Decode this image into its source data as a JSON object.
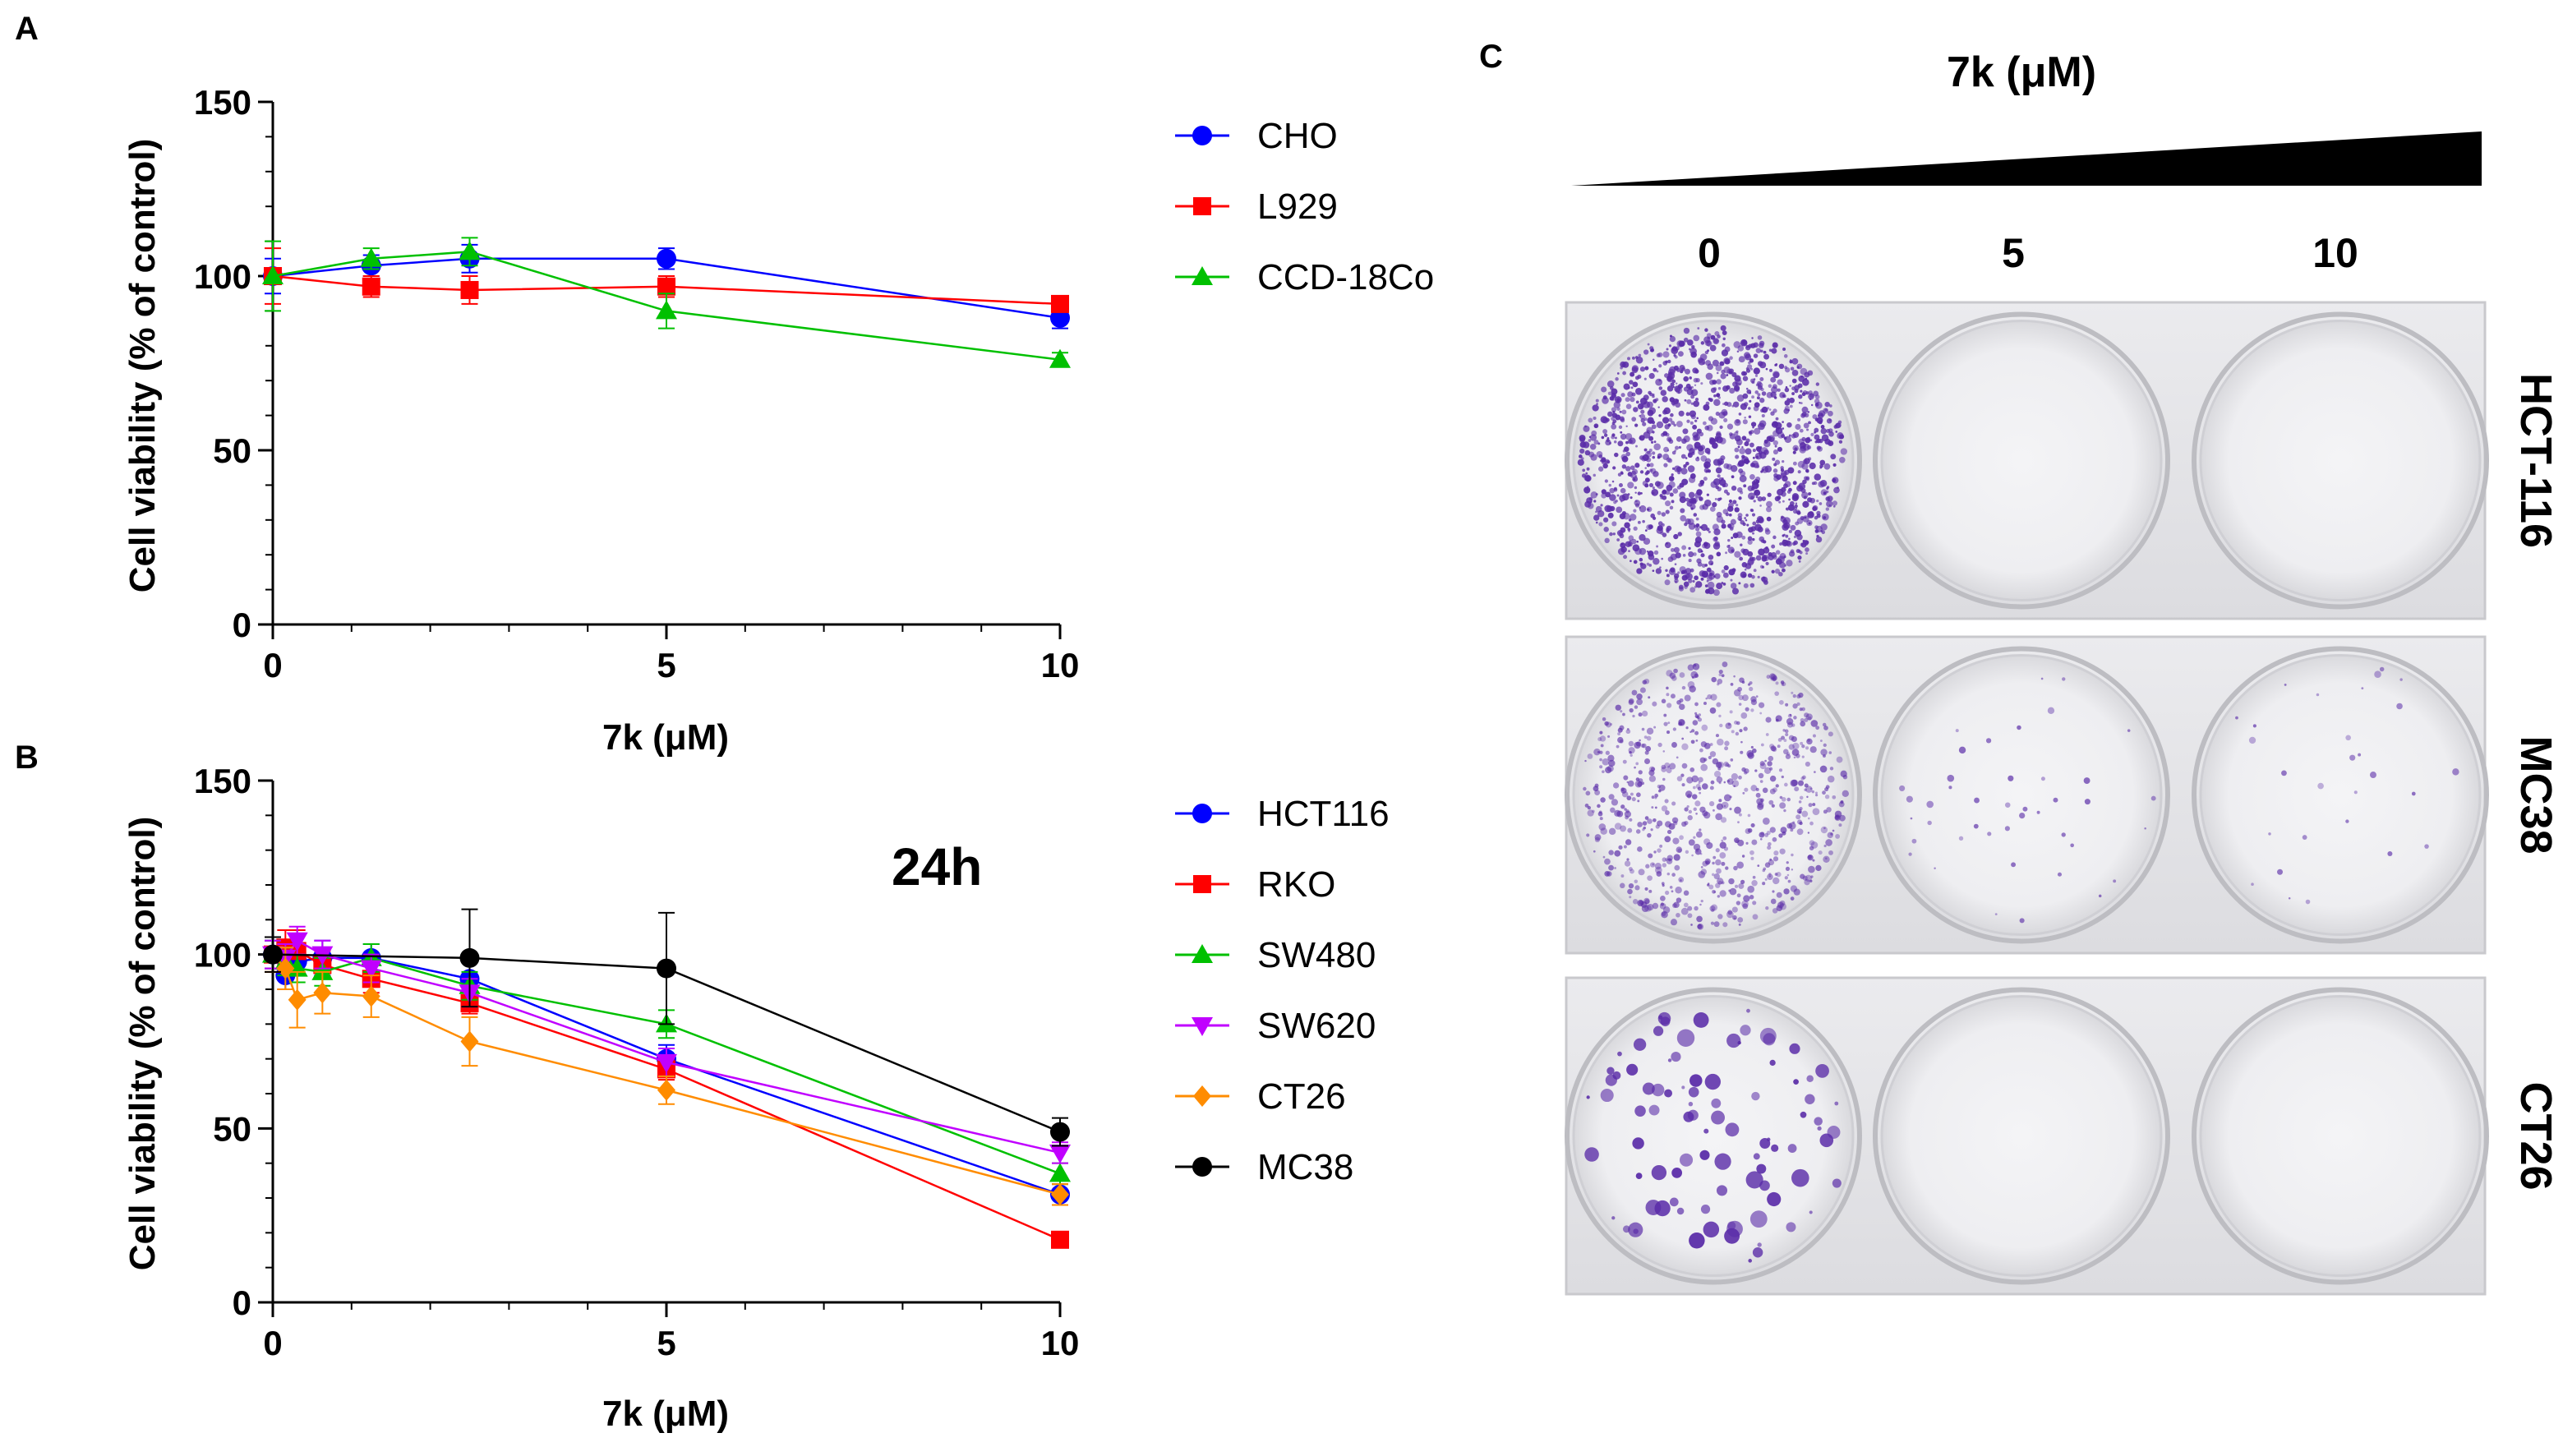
{
  "panel_labels": {
    "a": "A",
    "b": "B",
    "c": "C"
  },
  "chart_data": [
    {
      "type": "line",
      "panel": "A",
      "xlabel": "7k (μM)",
      "ylabel": "Cell viability (% of control)",
      "xlim": [
        0,
        10
      ],
      "ylim": [
        0,
        150
      ],
      "xticks": [
        0,
        5,
        10
      ],
      "yticks": [
        0,
        50,
        100,
        150
      ],
      "annotation": "",
      "legend_position": "right",
      "series": [
        {
          "name": "CHO",
          "color": "#0000ff",
          "marker": "circle",
          "x": [
            0,
            1.25,
            2.5,
            5,
            10
          ],
          "y": [
            100,
            103,
            105,
            105,
            88
          ],
          "err": [
            5,
            3,
            4,
            3,
            3
          ]
        },
        {
          "name": "L929",
          "color": "#ff0000",
          "marker": "square",
          "x": [
            0,
            1.25,
            2.5,
            5,
            10
          ],
          "y": [
            100,
            97,
            96,
            97,
            92
          ],
          "err": [
            8,
            3,
            4,
            3,
            2
          ]
        },
        {
          "name": "CCD-18Co",
          "color": "#00c000",
          "marker": "triangle-up",
          "x": [
            0,
            1.25,
            2.5,
            5,
            10
          ],
          "y": [
            100,
            105,
            107,
            90,
            76
          ],
          "err": [
            10,
            3,
            4,
            5,
            2
          ]
        }
      ]
    },
    {
      "type": "line",
      "panel": "B",
      "xlabel": "7k (μM)",
      "ylabel": "Cell viability (% of control)",
      "xlim": [
        0,
        10
      ],
      "ylim": [
        0,
        150
      ],
      "xticks": [
        0,
        5,
        10
      ],
      "yticks": [
        0,
        50,
        100,
        150
      ],
      "annotation": "24h",
      "legend_position": "right",
      "series": [
        {
          "name": "HCT116",
          "color": "#0000ff",
          "marker": "circle",
          "x": [
            0,
            0.16,
            0.31,
            0.63,
            1.25,
            2.5,
            5,
            10
          ],
          "y": [
            100,
            94,
            98,
            99,
            99,
            93,
            70,
            31
          ],
          "err": [
            4,
            4,
            4,
            5,
            4,
            5,
            4,
            3
          ]
        },
        {
          "name": "RKO",
          "color": "#ff0000",
          "marker": "square",
          "x": [
            0,
            0.16,
            0.31,
            0.63,
            1.25,
            2.5,
            5,
            10
          ],
          "y": [
            100,
            102,
            101,
            97,
            93,
            86,
            67,
            18
          ],
          "err": [
            5,
            5,
            6,
            4,
            4,
            3,
            3,
            2
          ]
        },
        {
          "name": "SW480",
          "color": "#00c000",
          "marker": "triangle-up",
          "x": [
            0,
            0.16,
            0.31,
            0.63,
            1.25,
            2.5,
            5,
            10
          ],
          "y": [
            100,
            98,
            96,
            95,
            99,
            91,
            80,
            37
          ],
          "err": [
            4,
            4,
            4,
            4,
            4,
            4,
            4,
            3
          ]
        },
        {
          "name": "SW620",
          "color": "#c000ff",
          "marker": "triangle-down",
          "x": [
            0,
            0.16,
            0.31,
            0.63,
            1.25,
            2.5,
            5,
            10
          ],
          "y": [
            100,
            99,
            104,
            100,
            96,
            89,
            69,
            43
          ],
          "err": [
            4,
            4,
            4,
            4,
            4,
            4,
            4,
            3
          ]
        },
        {
          "name": "CT26",
          "color": "#ff8c00",
          "marker": "diamond",
          "x": [
            0,
            0.16,
            0.31,
            0.63,
            1.25,
            2.5,
            5,
            10
          ],
          "y": [
            100,
            96,
            87,
            89,
            88,
            75,
            61,
            31
          ],
          "err": [
            5,
            6,
            8,
            6,
            6,
            7,
            4,
            3
          ]
        },
        {
          "name": "MC38",
          "color": "#000000",
          "marker": "circle",
          "x": [
            0,
            2.5,
            5,
            10
          ],
          "y": [
            100,
            99,
            96,
            49
          ],
          "err": [
            5,
            14,
            16,
            4
          ]
        }
      ]
    }
  ],
  "panel_c": {
    "title": "7k (μM)",
    "concentrations": [
      "0",
      "5",
      "10"
    ],
    "rows": [
      {
        "name": "HCT-116",
        "colony_density": [
          1.0,
          0.0,
          0.0
        ]
      },
      {
        "name": "MC38",
        "colony_density": [
          0.55,
          0.03,
          0.02
        ]
      },
      {
        "name": "CT26",
        "colony_density": [
          0.35,
          0.0,
          0.0
        ]
      }
    ]
  },
  "colors": {
    "axis": "#000000",
    "stain": "#5a2ca8",
    "plate": "#e3e3e5",
    "well_rim": "#c8c8cc"
  }
}
